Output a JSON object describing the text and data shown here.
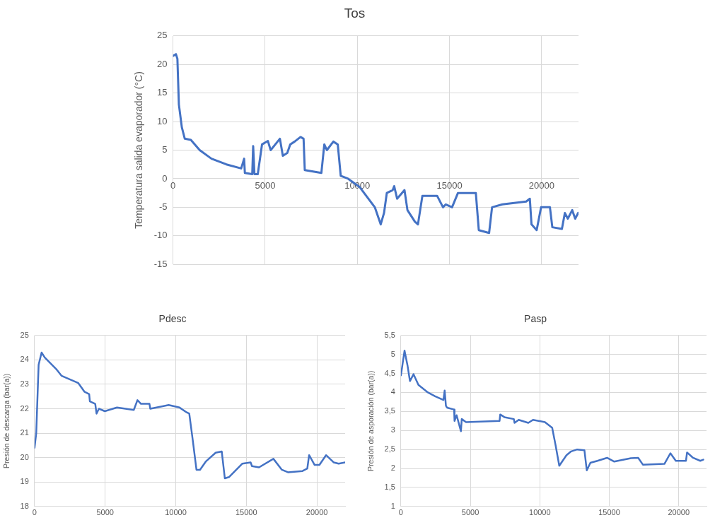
{
  "chart_data": [
    {
      "type": "line",
      "title": "Tos",
      "ylabel": "Temperatura salida evaporador (°C)",
      "xlim": [
        0,
        22000
      ],
      "xticks": [
        0,
        5000,
        10000,
        15000,
        20000
      ],
      "ylim": [
        -15,
        25
      ],
      "yticks": [
        -15,
        -10,
        -5,
        0,
        5,
        10,
        15,
        20,
        25
      ],
      "grid": true,
      "legend": false,
      "marker": "none",
      "line_style": "solid",
      "series": [
        {
          "color": "#4472c4",
          "x": [
            0,
            160,
            240,
            320,
            480,
            640,
            970,
            1450,
            2090,
            2900,
            3700,
            3860,
            3900,
            4300,
            4350,
            4420,
            4600,
            4830,
            5150,
            5300,
            5800,
            5960,
            6200,
            6360,
            6600,
            6920,
            7085,
            7150,
            8050,
            8210,
            8350,
            8700,
            8940,
            9100,
            9500,
            10140,
            10950,
            11270,
            11450,
            11600,
            11920,
            12000,
            12160,
            12560,
            12720,
            13120,
            13290,
            13530,
            14330,
            14650,
            14800,
            15140,
            15460,
            16430,
            16590,
            17150,
            17310,
            17870,
            19160,
            19360,
            19450,
            19730,
            19970,
            20450,
            20580,
            21100,
            21260,
            21420,
            21660,
            21820,
            21980
          ],
          "values": [
            21.5,
            21.8,
            21,
            13,
            9,
            7,
            6.8,
            5,
            3.5,
            2.5,
            1.8,
            3.5,
            1,
            0.8,
            5.7,
            0.8,
            0.8,
            6,
            6.6,
            5,
            7,
            4,
            4.5,
            6,
            6.5,
            7.3,
            7,
            1.5,
            1,
            6,
            5,
            6.5,
            6,
            0.5,
            0,
            -1.5,
            -5,
            -8,
            -6,
            -2.5,
            -2,
            -1.3,
            -3.5,
            -2,
            -5.5,
            -7.5,
            -8,
            -3,
            -3,
            -5,
            -4.5,
            -5,
            -2.5,
            -2.5,
            -9,
            -9.5,
            -5,
            -4.5,
            -4,
            -3.5,
            -8,
            -9,
            -5,
            -5,
            -8.5,
            -8.8,
            -6,
            -7,
            -5.5,
            -7,
            -6
          ]
        }
      ]
    },
    {
      "type": "line",
      "title": "Pdesc",
      "ylabel": "Presión de descarga (bar(a))",
      "xlim": [
        0,
        22000
      ],
      "xticks": [
        0,
        5000,
        10000,
        15000,
        20000
      ],
      "ylim": [
        18,
        25
      ],
      "yticks": [
        18,
        19,
        20,
        21,
        22,
        23,
        24,
        25
      ],
      "grid": true,
      "legend": false,
      "marker": "none",
      "line_style": "solid",
      "series": [
        {
          "color": "#4472c4",
          "x": [
            0,
            120,
            290,
            500,
            720,
            1570,
            1910,
            3100,
            3530,
            3870,
            3920,
            4300,
            4390,
            4560,
            4980,
            5840,
            7030,
            7290,
            7540,
            8140,
            8200,
            9080,
            9500,
            10270,
            10780,
            10960,
            11210,
            11470,
            11720,
            12150,
            12830,
            13260,
            13480,
            13770,
            14710,
            15310,
            15400,
            15900,
            16920,
            17520,
            17950,
            18980,
            19320,
            19450,
            19840,
            20180,
            20650,
            21200,
            21540,
            22000
          ],
          "values": [
            20.4,
            21,
            23.8,
            24.3,
            24.1,
            23.6,
            23.35,
            23.05,
            22.7,
            22.6,
            22.3,
            22.2,
            21.8,
            22,
            21.9,
            22.05,
            21.95,
            22.35,
            22.2,
            22.2,
            22,
            22.1,
            22.15,
            22.05,
            21.85,
            21.8,
            20.7,
            19.5,
            19.5,
            19.85,
            20.2,
            20.25,
            19.15,
            19.2,
            19.75,
            19.8,
            19.65,
            19.6,
            19.95,
            19.5,
            19.4,
            19.45,
            19.55,
            20.1,
            19.7,
            19.7,
            20.1,
            19.8,
            19.75,
            19.8
          ]
        }
      ]
    },
    {
      "type": "line",
      "title": "Pasp",
      "ylabel": "Presión de asporación (bar(a))",
      "xlim": [
        0,
        22000
      ],
      "xticks": [
        0,
        5000,
        10000,
        15000,
        20000
      ],
      "ylim": [
        1,
        5.5
      ],
      "yticks": [
        1,
        {
          "value": 1.5,
          "label": "1,5"
        },
        2,
        {
          "value": 2.5,
          "label": "2,5"
        },
        3,
        {
          "value": 3.5,
          "label": "3,5"
        },
        4,
        {
          "value": 4.5,
          "label": "4,5"
        },
        5,
        {
          "value": 5.5,
          "label": "5,5"
        }
      ],
      "grid": true,
      "legend": false,
      "marker": "none",
      "line_style": "solid",
      "series": [
        {
          "color": "#4472c4",
          "x": [
            0,
            140,
            260,
            480,
            650,
            910,
            1260,
            1940,
            2460,
            3060,
            3150,
            3240,
            3320,
            3830,
            3860,
            4010,
            4320,
            4380,
            4690,
            7100,
            7150,
            7450,
            8130,
            8180,
            8480,
            9170,
            9510,
            10370,
            10890,
            11140,
            11400,
            11920,
            12260,
            12690,
            13210,
            13380,
            13640,
            14150,
            14840,
            15360,
            16560,
            17080,
            17420,
            18970,
            19400,
            19790,
            20170,
            20520,
            20600,
            21030,
            21550,
            21770
          ],
          "values": [
            4.45,
            4.8,
            5.1,
            4.7,
            4.3,
            4.48,
            4.2,
            4,
            3.9,
            3.8,
            4.05,
            3.65,
            3.6,
            3.55,
            3.25,
            3.4,
            2.98,
            3.3,
            3.22,
            3.25,
            3.42,
            3.35,
            3.3,
            3.2,
            3.28,
            3.2,
            3.28,
            3.22,
            3.07,
            2.6,
            2.07,
            2.35,
            2.45,
            2.5,
            2.48,
            1.95,
            2.15,
            2.2,
            2.28,
            2.18,
            2.27,
            2.28,
            2.1,
            2.12,
            2.4,
            2.2,
            2.2,
            2.2,
            2.42,
            2.28,
            2.2,
            2.23
          ]
        }
      ]
    }
  ]
}
